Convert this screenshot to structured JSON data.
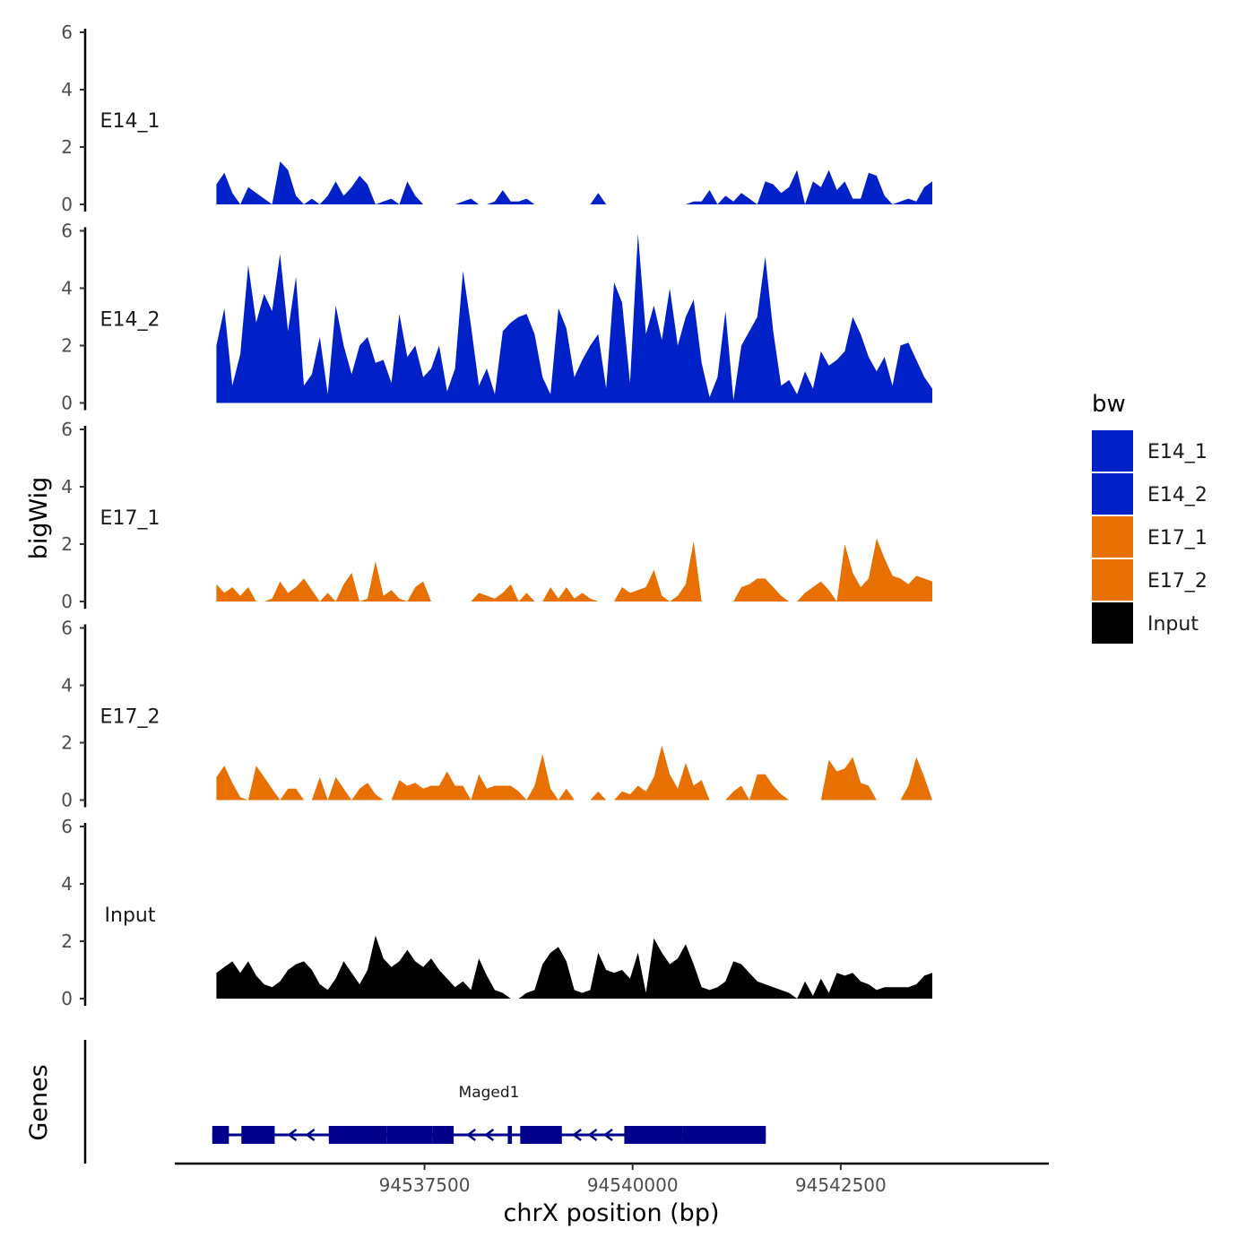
{
  "chart_data": {
    "type": "area",
    "xlabel": "chrX position (bp)",
    "ylabel": "bigWig",
    "genes_label": "Genes",
    "xlim": [
      94534500,
      94545000
    ],
    "x_ticks": [
      94537500,
      94540000,
      94542500
    ],
    "x_tick_labels": [
      "94537500",
      "94540000",
      "94542500"
    ],
    "ylim": [
      0,
      6
    ],
    "y_ticks": [
      0,
      2,
      4,
      6
    ],
    "y_tick_labels": [
      "0",
      "2",
      "4",
      "6"
    ],
    "data_x_range": [
      94535000,
      94543600
    ],
    "legend": {
      "title": "bw",
      "entries": [
        "E14_1",
        "E14_2",
        "E17_1",
        "E17_2",
        "Input"
      ],
      "colors": [
        "#0020C8",
        "#0020C8",
        "#E87000",
        "#E87000",
        "#000000"
      ]
    },
    "series": [
      {
        "name": "E14_1",
        "color": "#0020C8",
        "values": [
          0.7,
          1.1,
          0.4,
          0.0,
          0.6,
          0.4,
          0.2,
          0.0,
          1.5,
          1.2,
          0.3,
          0.0,
          0.2,
          0.0,
          0.3,
          0.8,
          0.3,
          0.6,
          1.0,
          0.7,
          0.0,
          0.1,
          0.2,
          0.0,
          0.8,
          0.3,
          0.0,
          0.0,
          0.0,
          0.0,
          0.0,
          0.1,
          0.2,
          0.0,
          0.0,
          0.1,
          0.5,
          0.1,
          0.1,
          0.2,
          0.0,
          0.0,
          0.0,
          0.0,
          0.0,
          0.0,
          0.0,
          0.0,
          0.4,
          0.0,
          0.0,
          0.0,
          0.0,
          0.0,
          0.0,
          0.0,
          0.0,
          0.0,
          0.0,
          0.0,
          0.1,
          0.1,
          0.5,
          0.0,
          0.3,
          0.1,
          0.4,
          0.2,
          0.0,
          0.8,
          0.7,
          0.4,
          0.6,
          1.2,
          0.0,
          0.8,
          0.6,
          1.2,
          0.5,
          0.8,
          0.2,
          0.2,
          1.1,
          1.0,
          0.3,
          0.0,
          0.1,
          0.2,
          0.1,
          0.6,
          0.8
        ]
      },
      {
        "name": "E14_2",
        "color": "#0020C8",
        "values": [
          2.0,
          3.3,
          0.6,
          1.7,
          4.8,
          2.8,
          3.8,
          3.2,
          5.2,
          2.5,
          4.4,
          0.6,
          1.0,
          2.3,
          0.3,
          3.4,
          2.0,
          1.0,
          2.0,
          2.3,
          1.4,
          1.5,
          0.7,
          3.1,
          1.6,
          2.0,
          0.9,
          1.2,
          2.0,
          0.4,
          1.2,
          4.6,
          2.7,
          0.6,
          1.2,
          0.3,
          2.5,
          2.8,
          3.0,
          3.1,
          2.4,
          0.9,
          0.3,
          3.3,
          2.6,
          0.9,
          1.5,
          2.0,
          2.4,
          0.5,
          4.2,
          3.5,
          0.7,
          5.9,
          2.4,
          3.4,
          2.2,
          4.0,
          2.0,
          3.0,
          3.6,
          1.4,
          0.2,
          0.9,
          3.2,
          0.1,
          2.0,
          2.5,
          3.0,
          5.1,
          2.5,
          0.6,
          0.8,
          0.3,
          1.1,
          0.5,
          1.8,
          1.3,
          1.5,
          1.8,
          3.0,
          2.4,
          1.6,
          1.1,
          1.6,
          0.6,
          2.0,
          2.1,
          1.5,
          0.9,
          0.5
        ]
      },
      {
        "name": "E17_1",
        "color": "#E87000",
        "values": [
          0.6,
          0.3,
          0.5,
          0.2,
          0.5,
          0.0,
          0.0,
          0.1,
          0.7,
          0.3,
          0.5,
          0.8,
          0.4,
          0.0,
          0.3,
          0.0,
          0.6,
          1.0,
          0.0,
          0.1,
          1.4,
          0.2,
          0.4,
          0.1,
          0.0,
          0.5,
          0.7,
          0.0,
          0.0,
          0.0,
          0.0,
          0.0,
          0.0,
          0.3,
          0.2,
          0.1,
          0.3,
          0.6,
          0.0,
          0.3,
          0.0,
          0.0,
          0.5,
          0.1,
          0.5,
          0.1,
          0.3,
          0.1,
          0.0,
          0.0,
          0.0,
          0.5,
          0.3,
          0.4,
          0.5,
          1.1,
          0.2,
          0.0,
          0.2,
          0.6,
          2.1,
          0.0,
          0.0,
          0.0,
          0.0,
          0.0,
          0.5,
          0.6,
          0.8,
          0.8,
          0.5,
          0.2,
          0.0,
          0.0,
          0.3,
          0.5,
          0.7,
          0.4,
          0.0,
          2.0,
          1.0,
          0.5,
          0.8,
          2.2,
          1.5,
          0.9,
          0.8,
          0.6,
          0.9,
          0.8,
          0.7
        ]
      },
      {
        "name": "E17_2",
        "color": "#E87000",
        "values": [
          0.8,
          1.2,
          0.6,
          0.1,
          0.0,
          1.2,
          0.8,
          0.4,
          0.0,
          0.4,
          0.4,
          0.0,
          0.0,
          0.8,
          0.0,
          0.8,
          0.4,
          0.0,
          0.4,
          0.6,
          0.2,
          0.0,
          0.0,
          0.7,
          0.5,
          0.6,
          0.4,
          0.5,
          0.5,
          1.0,
          0.5,
          0.5,
          0.0,
          0.9,
          0.4,
          0.5,
          0.5,
          0.5,
          0.3,
          0.0,
          0.5,
          1.6,
          0.4,
          0.0,
          0.4,
          0.0,
          0.0,
          0.0,
          0.3,
          0.0,
          0.0,
          0.3,
          0.2,
          0.5,
          0.3,
          0.8,
          1.9,
          0.9,
          0.4,
          1.3,
          0.5,
          0.7,
          0.0,
          0.0,
          0.0,
          0.3,
          0.5,
          0.0,
          0.9,
          0.9,
          0.5,
          0.2,
          0.0,
          0.0,
          0.0,
          0.0,
          0.0,
          1.4,
          1.0,
          1.1,
          1.5,
          0.6,
          0.5,
          0.0,
          0.0,
          0.0,
          0.0,
          0.5,
          1.5,
          0.8,
          0.0
        ]
      },
      {
        "name": "Input",
        "color": "#000000",
        "values": [
          0.9,
          1.1,
          1.3,
          0.9,
          1.3,
          0.8,
          0.5,
          0.4,
          0.6,
          1.0,
          1.2,
          1.3,
          1.0,
          0.5,
          0.3,
          0.7,
          1.3,
          0.9,
          0.5,
          1.0,
          2.2,
          1.4,
          1.1,
          1.3,
          1.7,
          1.3,
          1.1,
          1.4,
          1.0,
          0.7,
          0.4,
          0.6,
          0.3,
          1.4,
          0.8,
          0.3,
          0.2,
          0.0,
          0.0,
          0.2,
          0.3,
          1.2,
          1.6,
          1.8,
          1.3,
          0.3,
          0.2,
          0.3,
          1.6,
          1.0,
          0.9,
          1.0,
          0.7,
          1.6,
          0.2,
          2.1,
          1.6,
          1.2,
          1.4,
          1.9,
          1.2,
          0.4,
          0.3,
          0.4,
          0.6,
          1.3,
          1.2,
          0.9,
          0.6,
          0.5,
          0.4,
          0.3,
          0.2,
          0.0,
          0.6,
          0.1,
          0.7,
          0.2,
          0.9,
          0.8,
          0.9,
          0.6,
          0.5,
          0.3,
          0.4,
          0.4,
          0.4,
          0.4,
          0.5,
          0.8,
          0.9
        ]
      }
    ],
    "gene": {
      "name": "Maged1",
      "color": "#00008B",
      "strand": "-",
      "start": 94534950,
      "end": 94541600,
      "exons": [
        [
          94534950,
          94535150
        ],
        [
          94535300,
          94535700
        ],
        [
          94536350,
          94537050
        ],
        [
          94537050,
          94537600
        ],
        [
          94537600,
          94537850
        ],
        [
          94538500,
          94538550
        ],
        [
          94538650,
          94539150
        ],
        [
          94539900,
          94540600
        ],
        [
          94540600,
          94541450
        ],
        [
          94541370,
          94541600
        ]
      ]
    }
  }
}
